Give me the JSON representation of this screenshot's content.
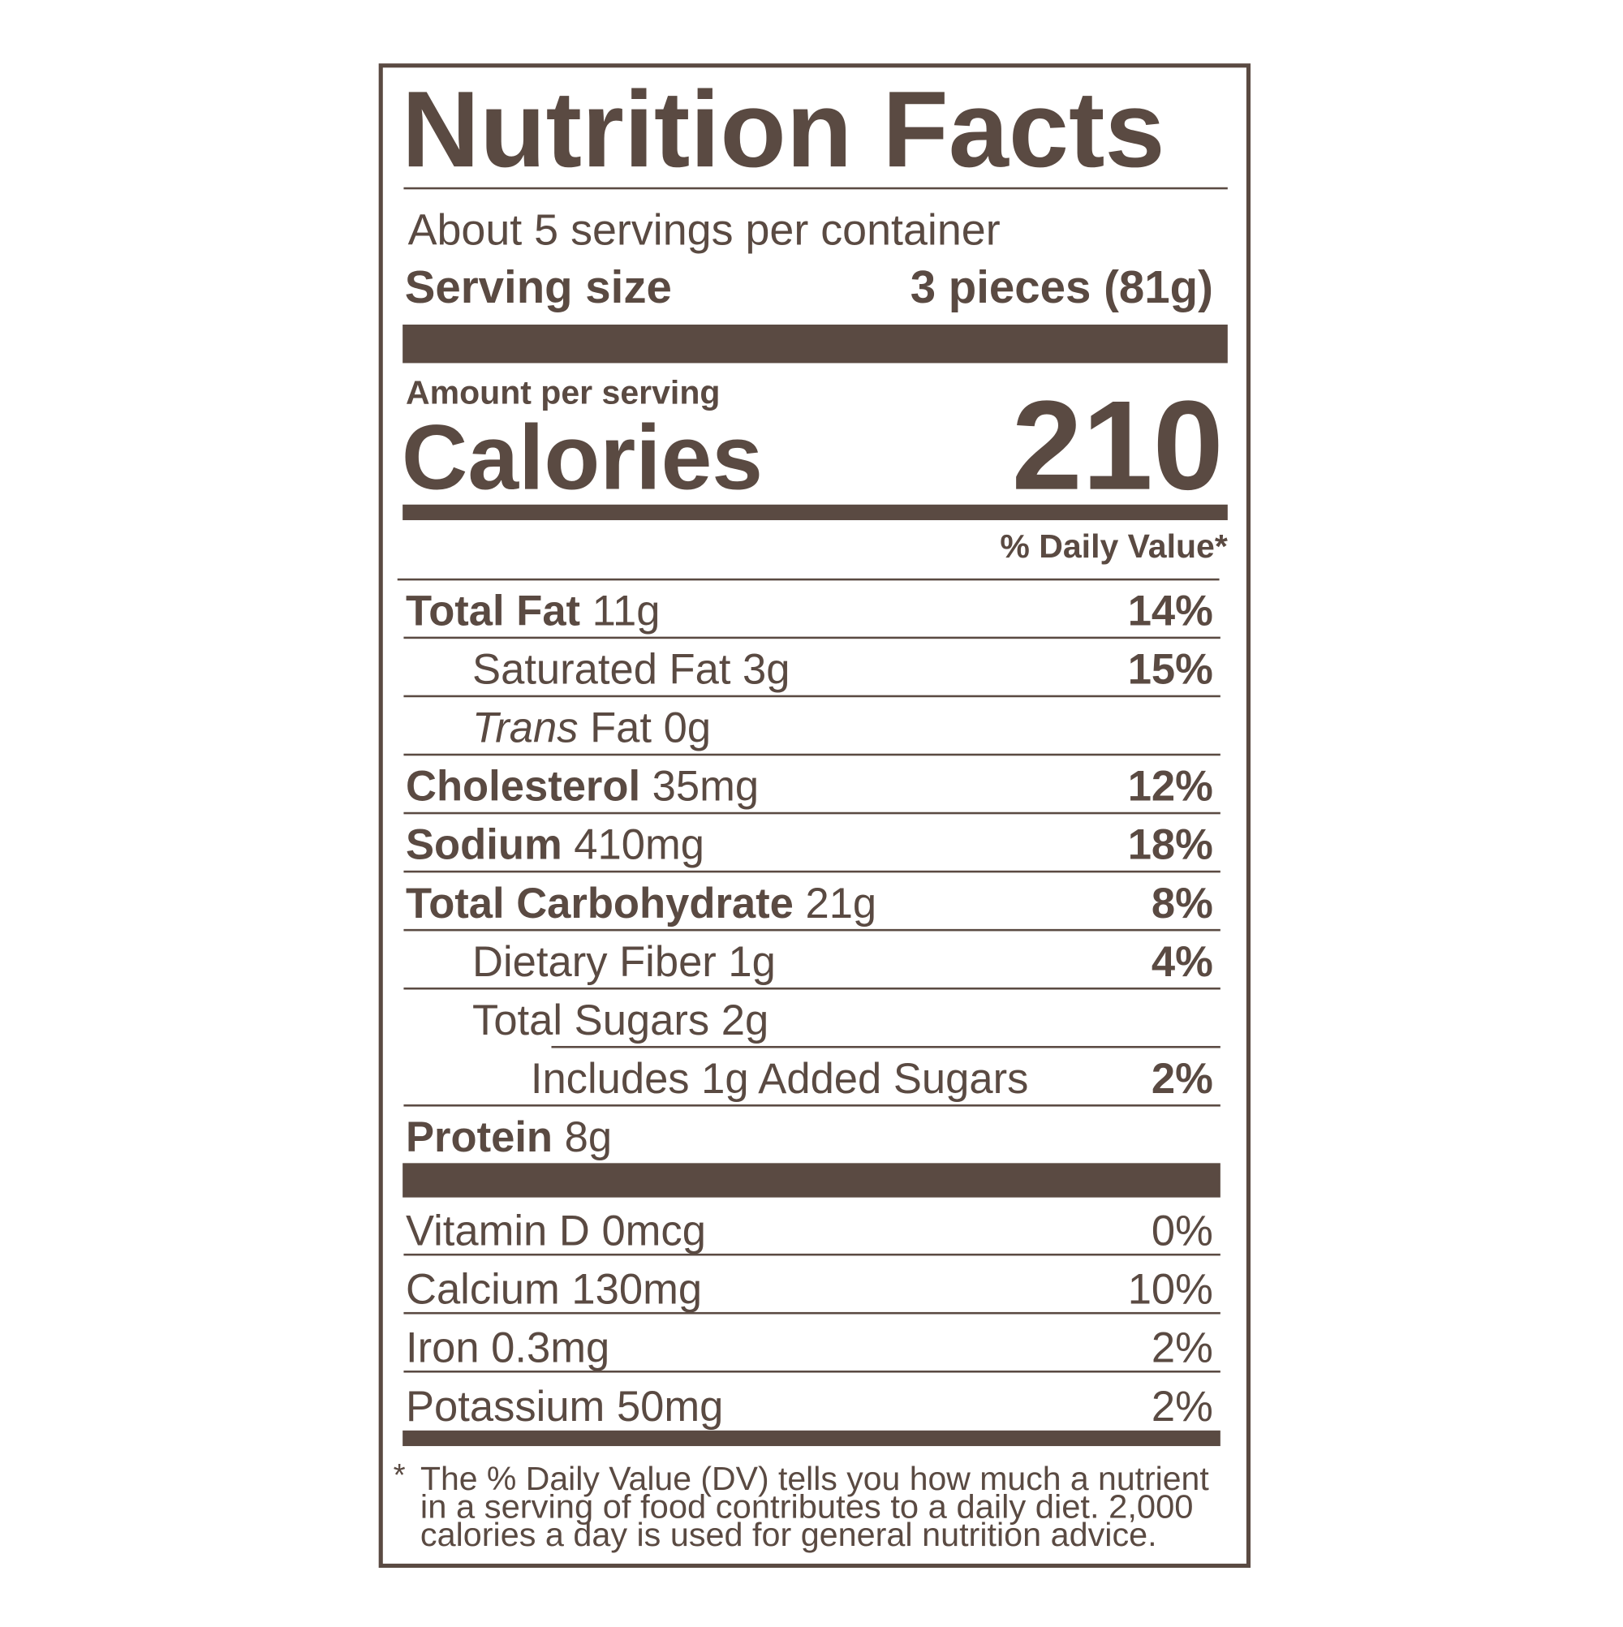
{
  "title": "Nutrition Facts",
  "servings_per_container": "About 5 servings per container",
  "serving_size": {
    "label": "Serving size",
    "value": "3 pieces (81g)"
  },
  "amount_per_serving": "Amount per serving",
  "calories": {
    "label": "Calories",
    "value": "210"
  },
  "daily_value_header": "% Daily Value*",
  "nutrients": [
    {
      "name": "Total Fat",
      "amount": "11g",
      "dv": "14%",
      "bold": true,
      "level": 0
    },
    {
      "name": "Saturated Fat",
      "amount": "3g",
      "dv": "15%",
      "bold": false,
      "level": 1
    },
    {
      "name_italic": "Trans",
      "name": "Fat",
      "amount": "0g",
      "bold": false,
      "level": 1
    },
    {
      "name": "Cholesterol",
      "amount": "35mg",
      "dv": "12%",
      "bold": true,
      "level": 0
    },
    {
      "name": "Sodium",
      "amount": "410mg",
      "dv": "18%",
      "bold": true,
      "level": 0
    },
    {
      "name": "Total Carbohydrate",
      "amount": "21g",
      "dv": "8%",
      "bold": true,
      "level": 0
    },
    {
      "name": "Dietary Fiber",
      "amount": "1g",
      "dv": "4%",
      "bold": false,
      "level": 1
    },
    {
      "name": "Total Sugars",
      "amount": "2g",
      "bold": false,
      "level": 1
    },
    {
      "name": "Includes 1g Added Sugars",
      "dv": "2%",
      "bold": false,
      "level": 2
    },
    {
      "name": "Protein",
      "amount": "8g",
      "bold": true,
      "level": 0
    }
  ],
  "vitamins": [
    {
      "name": "Vitamin D",
      "amount": "0mcg",
      "dv": "0%"
    },
    {
      "name": "Calcium",
      "amount": "130mg",
      "dv": "10%"
    },
    {
      "name": "Iron",
      "amount": "0.3mg",
      "dv": "2%"
    },
    {
      "name": "Potassium",
      "amount": "50mg",
      "dv": "2%"
    }
  ],
  "footnote": {
    "marker": "*",
    "lines": [
      "The % Daily Value (DV) tells you how much a nutrient",
      "in a serving of food contributes to a daily diet. 2,000",
      "calories a day is used for general nutrition advice."
    ]
  }
}
